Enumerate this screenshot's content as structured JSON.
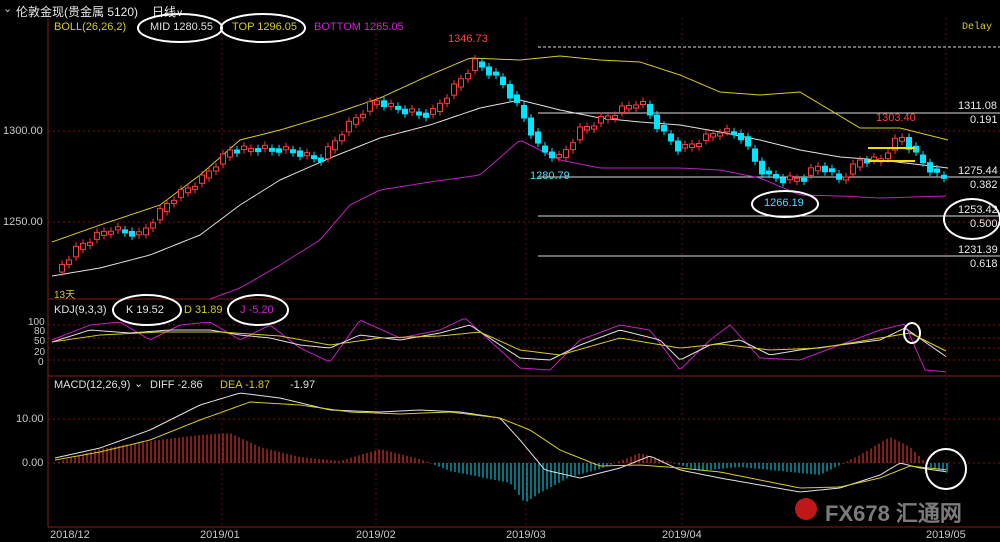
{
  "toolbar": {
    "instrument": "伦敦金现(贵金属 5120)",
    "period": "日线",
    "period_arrow": "∨",
    "delay": "Delay"
  },
  "boll": {
    "title": "BOLL(26,26,2)",
    "mid": "MID 1280.55",
    "top": "TOP 1296.05",
    "bottom": "BOTTOM 1265.05"
  },
  "kdj": {
    "title": "KDJ(9,3,3)",
    "k": "K 19.52",
    "d": "D 31.89",
    "j": "J -5.20",
    "ticks": [
      "100",
      "80",
      "50",
      "20",
      "0"
    ]
  },
  "macd": {
    "title": "MACD(12,26,9)",
    "diff": "DIFF -2.86",
    "dea": "DEA -1.87",
    "macd": "-1.97",
    "ticks": [
      "10.00",
      "0.00"
    ]
  },
  "price_axis": [
    "1300.00",
    "1250.00"
  ],
  "annotations": {
    "high": "1346.73",
    "low_mar": "1280.79",
    "low_apr": "1266.19",
    "high_apr": "1303.40",
    "small_label": "13天"
  },
  "fibonacci": [
    {
      "price": "1311.08",
      "ratio": "0.191"
    },
    {
      "price": "1275.44",
      "ratio": "0.382"
    },
    {
      "price": "1253.42",
      "ratio": "0.500"
    },
    {
      "price": "1231.39",
      "ratio": "0.618"
    }
  ],
  "dates": [
    "2018/12",
    "2019/01",
    "2019/02",
    "2019/03",
    "2019/04",
    "2019/05"
  ],
  "watermark": "FX678 汇通网",
  "colors": {
    "up": "#ff3b3b",
    "down": "#00e5ff",
    "mid": "#e0e0e0",
    "top": "#d4cc26",
    "bottom": "#c020c0",
    "grid": "#7a1010"
  }
}
